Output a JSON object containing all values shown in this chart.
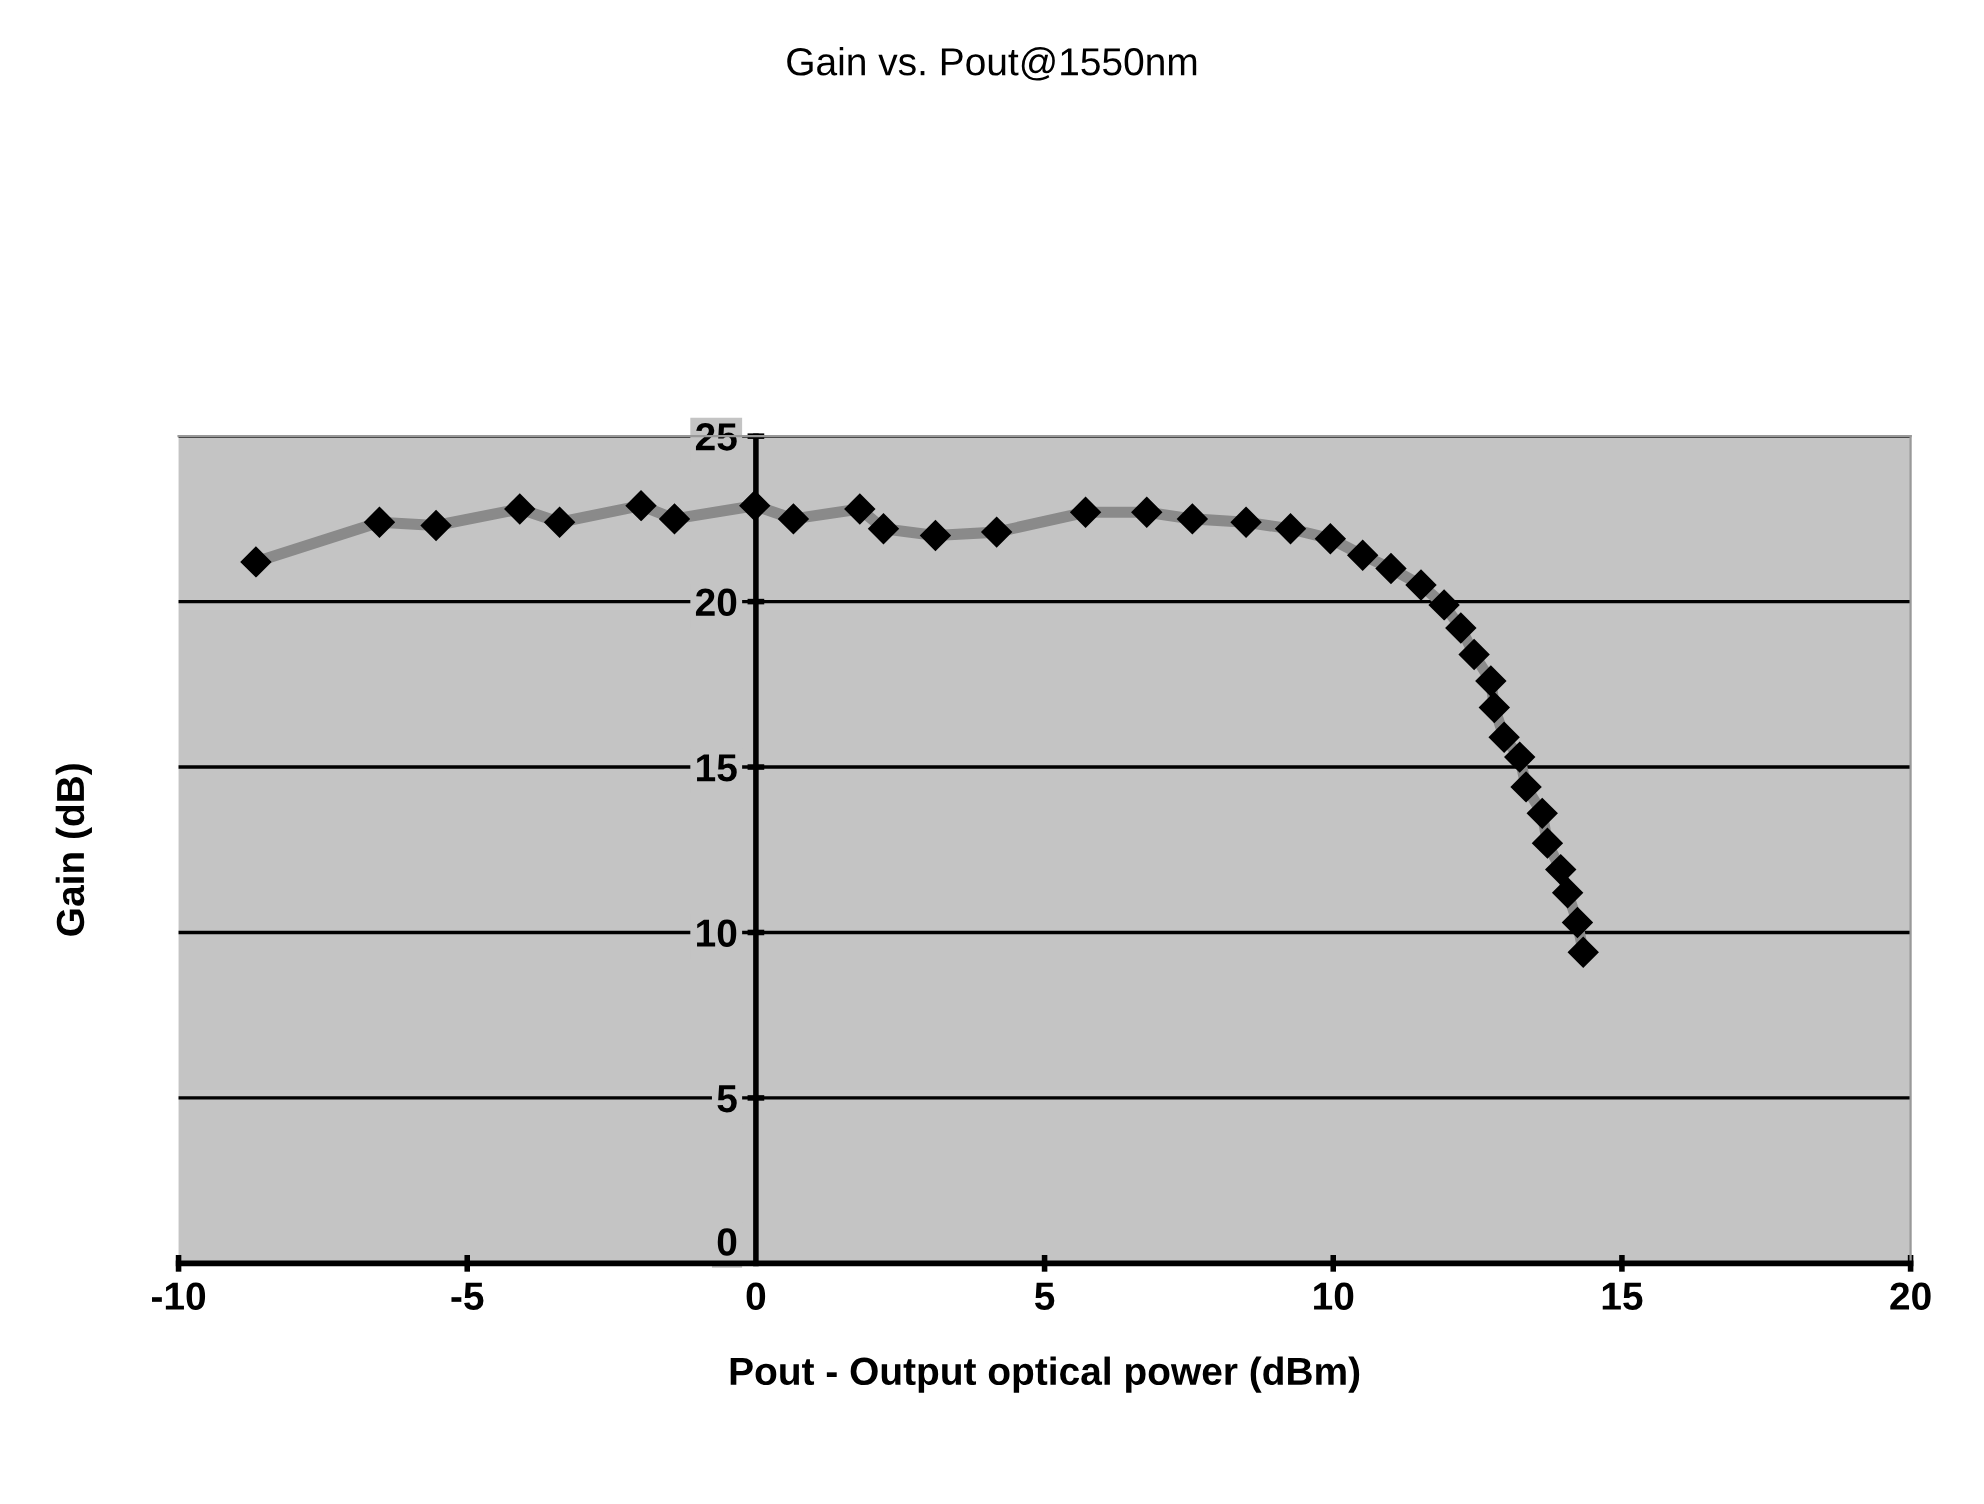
{
  "chart_data": {
    "type": "line",
    "title": "Gain vs. Pout@1550nm",
    "xlabel": "Pout - Output optical power (dBm)",
    "ylabel": "Gain (dB)",
    "xlim": [
      -10,
      20
    ],
    "xticks": [
      -10,
      -5,
      0,
      5,
      10,
      15,
      20
    ],
    "ylim": [
      0,
      25
    ],
    "yticks": [
      0,
      5,
      10,
      15,
      20,
      25
    ],
    "grid": "y",
    "marker": "diamond",
    "line_style": "solid",
    "series": [
      {
        "color": "#000000",
        "x": [
          -8.66,
          -6.52,
          -5.54,
          -4.09,
          -3.4,
          -1.99,
          -1.41,
          -0.02,
          0.65,
          1.8,
          2.21,
          3.11,
          4.17,
          5.71,
          6.77,
          7.56,
          8.49,
          9.26,
          9.95,
          10.51,
          11.0,
          11.52,
          11.92,
          12.21,
          12.44,
          12.73,
          12.79,
          12.96,
          13.23,
          13.34,
          13.62,
          13.71,
          13.94,
          14.06,
          14.23,
          14.33
        ],
        "values": [
          21.2,
          22.4,
          22.3,
          22.8,
          22.4,
          22.9,
          22.5,
          22.9,
          22.5,
          22.8,
          22.2,
          22.0,
          22.1,
          22.7,
          22.7,
          22.5,
          22.4,
          22.2,
          21.9,
          21.4,
          21.0,
          20.5,
          19.9,
          19.2,
          18.4,
          17.6,
          16.8,
          15.9,
          15.3,
          14.4,
          13.6,
          12.7,
          11.9,
          11.2,
          10.3,
          9.4
        ]
      }
    ]
  }
}
